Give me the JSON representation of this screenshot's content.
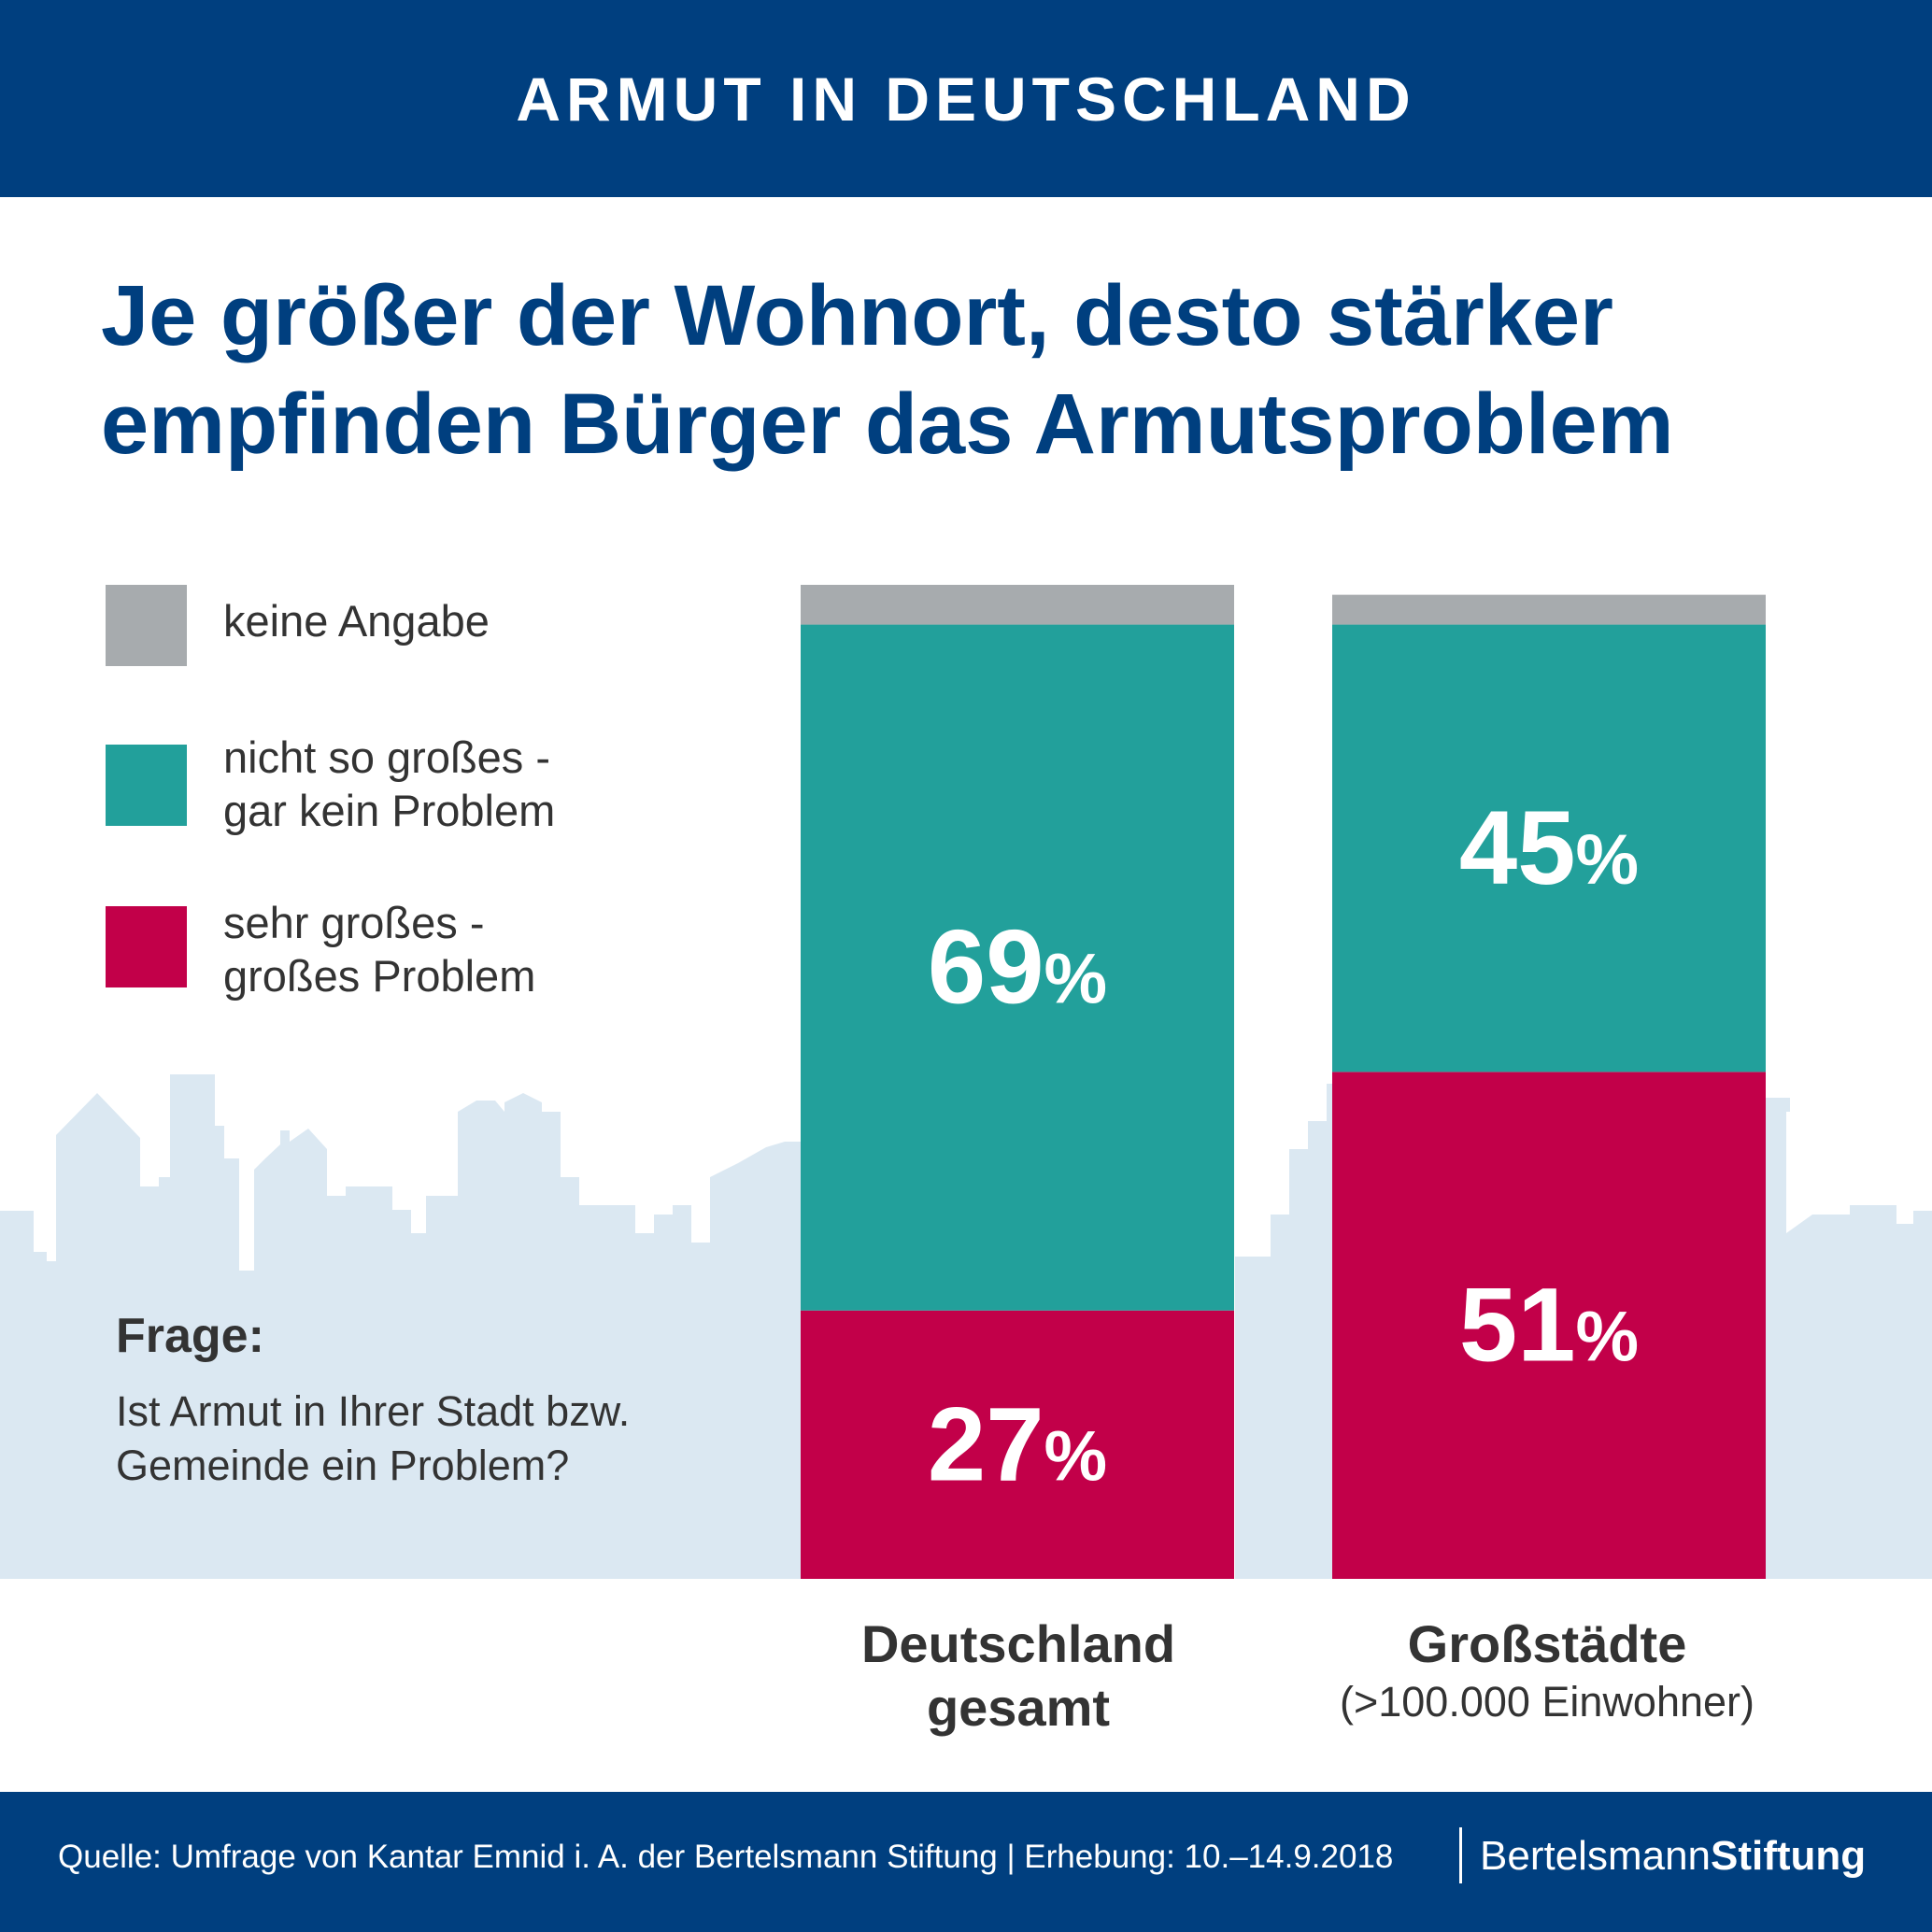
{
  "header": {
    "label": "ARMUT IN DEUTSCHLAND"
  },
  "headline": {
    "line1": "Je größer der Wohnort, desto stärker",
    "line2": "empfinden Bürger das Armutsproblem"
  },
  "legend": [
    {
      "label": "keine Angabe",
      "color": "#a7abae"
    },
    {
      "label": "nicht so großes -\ngar kein Problem",
      "color": "#22a09b"
    },
    {
      "label": "sehr großes -\ngroßes Problem",
      "color": "#c20049"
    }
  ],
  "question": {
    "title": "Frage:",
    "text": "Ist Armut in Ihrer Stadt bzw. Gemeinde ein Problem?"
  },
  "chart_data": {
    "type": "bar",
    "stacked": true,
    "orientation": "vertical",
    "unit": "%",
    "categories": [
      "Deutschland\ngesamt",
      "Großstädte"
    ],
    "category_sublabels": [
      "",
      "(>100.000 Einwohner)"
    ],
    "series": [
      {
        "name": "sehr großes - großes Problem",
        "color": "#c20049",
        "values": [
          27,
          51
        ]
      },
      {
        "name": "nicht so großes - gar kein Problem",
        "color": "#22a09b",
        "values": [
          69,
          45
        ]
      },
      {
        "name": "keine Angabe",
        "color": "#a7abae",
        "values": [
          4,
          3
        ]
      }
    ],
    "data_labels": [
      {
        "series": 0,
        "labels": [
          "27",
          "51"
        ]
      },
      {
        "series": 1,
        "labels": [
          "69",
          "45"
        ]
      }
    ],
    "ylim": [
      0,
      100
    ],
    "grid": false,
    "legend_position": "left"
  },
  "footer": {
    "source": "Quelle: Umfrage von Kantar Emnid i. A. der Bertelsmann Stiftung | Erhebung: 10.–14.9.2018",
    "logo_part1": "Bertelsmann",
    "logo_part2": "Stiftung"
  }
}
